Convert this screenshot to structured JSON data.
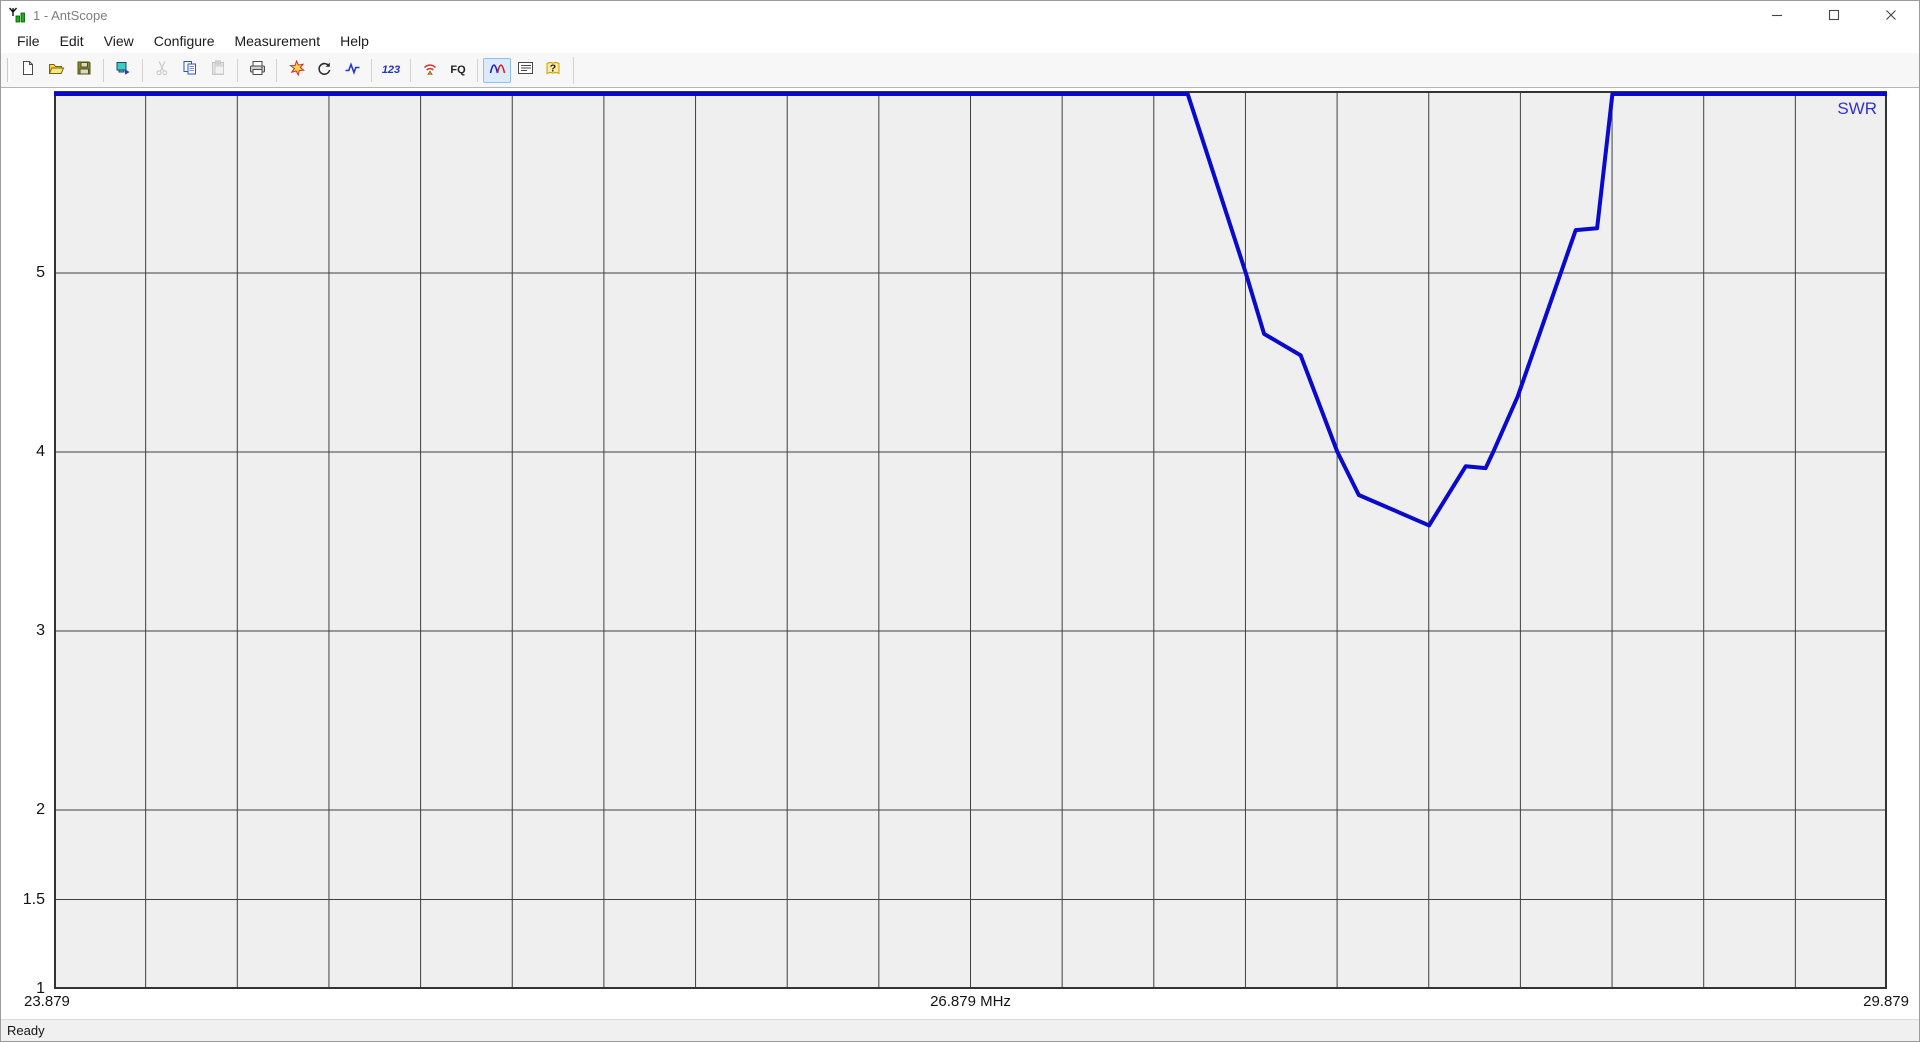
{
  "window": {
    "title": "1 - AntScope",
    "app_icon": "antenna-icon",
    "controls": [
      {
        "name": "minimize"
      },
      {
        "name": "maximize"
      },
      {
        "name": "close"
      }
    ]
  },
  "menu": {
    "items": [
      {
        "label": "File"
      },
      {
        "label": "Edit"
      },
      {
        "label": "View"
      },
      {
        "label": "Configure"
      },
      {
        "label": "Measurement"
      },
      {
        "label": "Help"
      }
    ]
  },
  "toolbar": {
    "buttons": [
      {
        "name": "new",
        "icon": "new-document-icon"
      },
      {
        "name": "open",
        "icon": "open-folder-icon"
      },
      {
        "name": "save",
        "icon": "save-icon"
      },
      {
        "sep": true
      },
      {
        "name": "connect-analyzer",
        "icon": "analyzer-device-icon"
      },
      {
        "sep": true
      },
      {
        "name": "cut",
        "icon": "cut-icon",
        "disabled": true
      },
      {
        "name": "copy",
        "icon": "copy-icon"
      },
      {
        "name": "paste",
        "icon": "paste-icon",
        "disabled": true
      },
      {
        "sep": true
      },
      {
        "name": "print",
        "icon": "print-icon"
      },
      {
        "sep": true
      },
      {
        "name": "calibrate",
        "icon": "star-burst-icon"
      },
      {
        "name": "refresh-measurement",
        "icon": "rotate-icon"
      },
      {
        "name": "single-sweep",
        "icon": "waveform-icon"
      },
      {
        "sep": true
      },
      {
        "name": "numeric-view",
        "icon": "numeric-123-icon",
        "text": "123",
        "text_style": "blue"
      },
      {
        "sep": true
      },
      {
        "name": "antenna-signal",
        "icon": "wifi-icon"
      },
      {
        "name": "frequency-settings",
        "icon": "fq-icon",
        "text": "FQ",
        "text_style": "dark"
      },
      {
        "sep": true
      },
      {
        "name": "swr-chart-view",
        "icon": "swr-curves-icon",
        "pressed": true
      },
      {
        "name": "data-panel",
        "icon": "list-icon"
      },
      {
        "name": "help",
        "icon": "help-icon"
      }
    ]
  },
  "chart": {
    "legend": "SWR"
  },
  "chart_data": {
    "type": "line",
    "title": "SWR vs frequency sweep",
    "xlabel": "MHz",
    "ylabel": "SWR",
    "xlim": [
      23.879,
      29.879
    ],
    "ylim": [
      1,
      6.017
    ],
    "grid": true,
    "x_gridline_columns": 20,
    "legend": "SWR",
    "legend_position": "top-right",
    "x_ticks": [
      {
        "value": 23.879,
        "label": "23.879",
        "align": "left"
      },
      {
        "value": 26.879,
        "label": "26.879 MHz",
        "align": "center"
      },
      {
        "value": 29.879,
        "label": "29.879",
        "align": "right"
      }
    ],
    "y_ticks": [
      {
        "value": 5,
        "label": "5"
      },
      {
        "value": 4,
        "label": "4"
      },
      {
        "value": 3,
        "label": "3"
      },
      {
        "value": 2,
        "label": "2"
      },
      {
        "value": 1.5,
        "label": "1.5"
      },
      {
        "value": 1,
        "label": "1"
      }
    ],
    "series": [
      {
        "name": "SWR",
        "color": "#0a0acd",
        "points": [
          [
            23.879,
            6.0
          ],
          [
            27.59,
            6.0
          ],
          [
            27.78,
            5.0
          ],
          [
            27.84,
            4.66
          ],
          [
            27.96,
            4.54
          ],
          [
            28.08,
            4.0
          ],
          [
            28.15,
            3.76
          ],
          [
            28.38,
            3.59
          ],
          [
            28.5,
            3.92
          ],
          [
            28.565,
            3.91
          ],
          [
            28.59,
            4.0
          ],
          [
            28.67,
            4.31
          ],
          [
            28.86,
            5.24
          ],
          [
            28.93,
            5.25
          ],
          [
            28.98,
            6.0
          ],
          [
            29.879,
            6.0
          ]
        ]
      }
    ]
  },
  "status": {
    "text": "Ready"
  },
  "colors": {
    "curve": "#0a0acd",
    "legend_text": "#3333cc",
    "grid_line": "#3f3f3f",
    "plot_border": "#333333",
    "plot_background": "#efefef"
  }
}
